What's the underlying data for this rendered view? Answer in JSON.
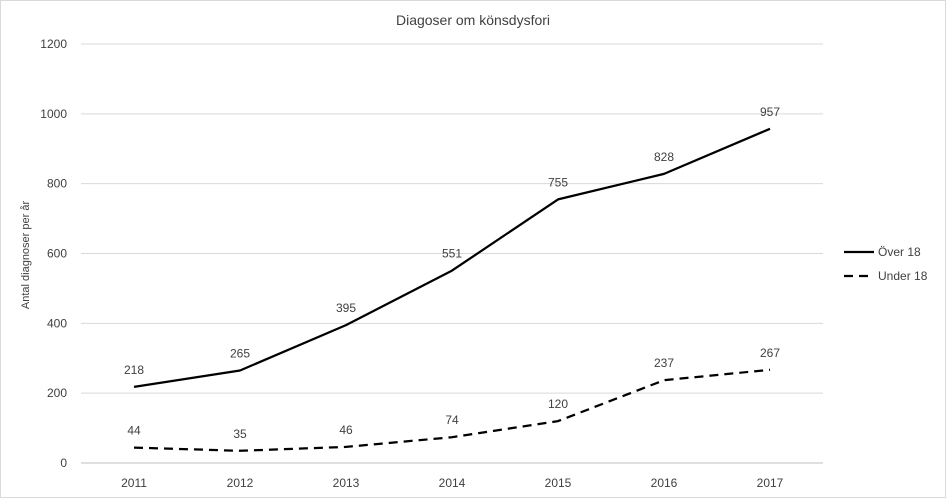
{
  "chart_data": {
    "type": "line",
    "title": "Diagoser om könsdysfori",
    "ylabel": "Antal diagnoser per år",
    "xlabel": "",
    "x": [
      "2011",
      "2012",
      "2013",
      "2014",
      "2015",
      "2016",
      "2017"
    ],
    "ylim": [
      0,
      1200
    ],
    "yticks": [
      0,
      200,
      400,
      600,
      800,
      1000,
      1200
    ],
    "grid": true,
    "legend": "right",
    "series": [
      {
        "name": "Över 18",
        "style": "solid",
        "color": "#000000",
        "values": [
          218,
          265,
          395,
          551,
          755,
          828,
          957
        ]
      },
      {
        "name": "Under 18",
        "style": "dashed",
        "color": "#000000",
        "values": [
          44,
          35,
          46,
          74,
          120,
          237,
          267
        ]
      }
    ]
  }
}
